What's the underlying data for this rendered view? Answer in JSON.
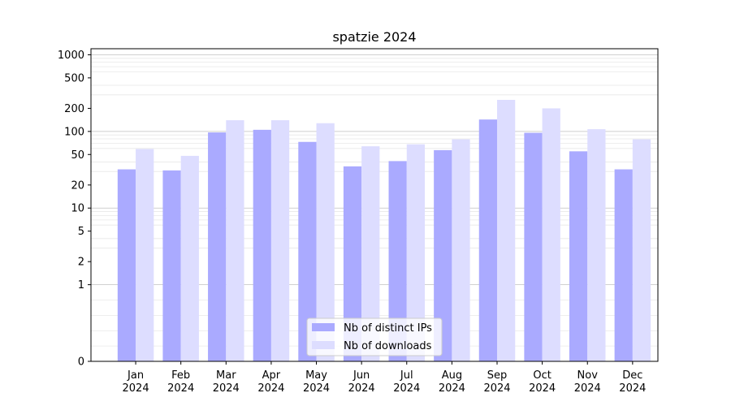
{
  "chart_data": {
    "type": "bar",
    "title": "spatzie 2024",
    "xlabel": "",
    "ylabel": "",
    "y_scale": "symlog",
    "ylim": [
      0,
      1200
    ],
    "y_ticks": [
      0,
      1,
      2,
      5,
      10,
      20,
      50,
      100,
      200,
      500,
      1000
    ],
    "grid": true,
    "legend_position": "bottom-center",
    "categories": [
      [
        "Jan",
        "2024"
      ],
      [
        "Feb",
        "2024"
      ],
      [
        "Mar",
        "2024"
      ],
      [
        "Apr",
        "2024"
      ],
      [
        "May",
        "2024"
      ],
      [
        "Jun",
        "2024"
      ],
      [
        "Jul",
        "2024"
      ],
      [
        "Aug",
        "2024"
      ],
      [
        "Sep",
        "2024"
      ],
      [
        "Oct",
        "2024"
      ],
      [
        "Nov",
        "2024"
      ],
      [
        "Dec",
        "2024"
      ]
    ],
    "series": [
      {
        "name": "Nb of distinct IPs",
        "color": "#aaaaff",
        "values": [
          32,
          31,
          97,
          105,
          73,
          35,
          41,
          57,
          143,
          96,
          55,
          32
        ]
      },
      {
        "name": "Nb of downloads",
        "color": "#ddddff",
        "values": [
          59,
          48,
          140,
          140,
          128,
          64,
          68,
          79,
          258,
          200,
          107,
          79
        ]
      }
    ]
  }
}
